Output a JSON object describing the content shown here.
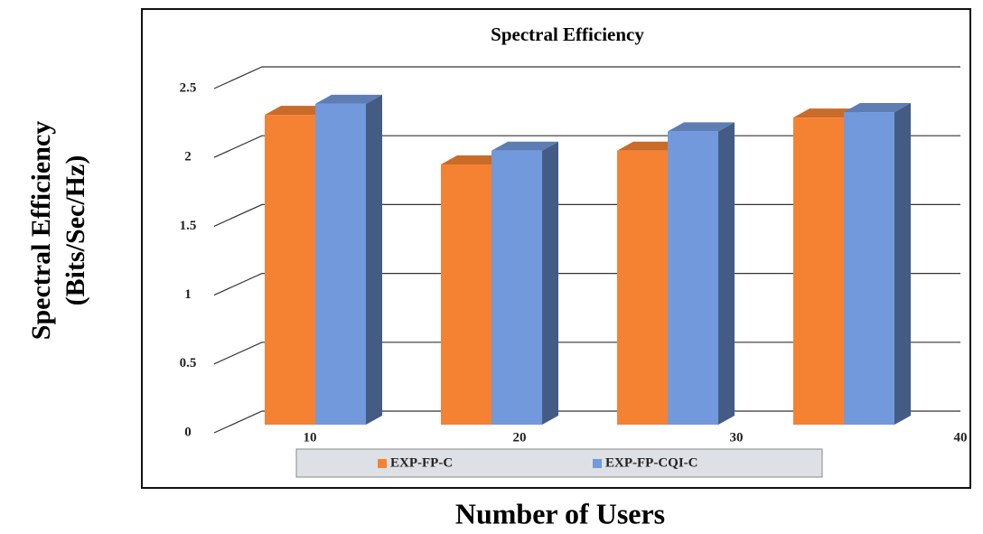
{
  "chart_data": {
    "type": "bar3d",
    "title": "Spectral Efficiency",
    "ylabel": [
      "Spectral Efficiency",
      "(Bits/Sec/Hz)"
    ],
    "xlabel": "Number of Users",
    "categories": [
      "10",
      "20",
      "30",
      "40"
    ],
    "series": [
      {
        "name": "EXP-FP-C",
        "color": "#f58232",
        "values": [
          2.25,
          1.89,
          1.99,
          2.23
        ]
      },
      {
        "name": "EXP-FP-CQI-C",
        "color": "#7199dc",
        "values": [
          2.33,
          1.99,
          2.13,
          2.27
        ]
      }
    ],
    "ylim": [
      0,
      2.5
    ],
    "yticks": [
      0,
      0.5,
      1,
      1.5,
      2,
      2.5
    ],
    "grid": true
  }
}
